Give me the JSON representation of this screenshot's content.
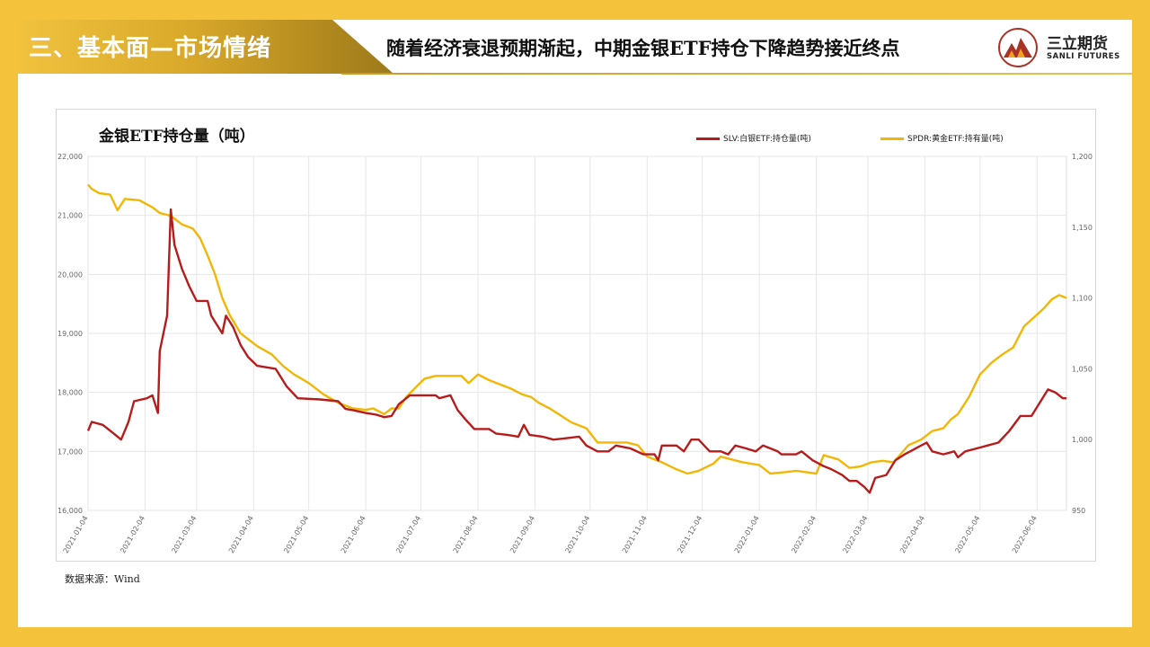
{
  "header": {
    "section_title": "三、基本面—市场情绪",
    "headline": "随着经济衰退预期渐起，中期金银ETF持仓下降趋势接近终点"
  },
  "logo": {
    "name_cn": "三立期货",
    "name_en": "SANLI FUTURES",
    "icon": "mountain-logo-icon"
  },
  "source": "数据来源：Wind",
  "colors": {
    "slv": "#b71c1c",
    "spdr": "#f2b705",
    "accent": "#f5c33b"
  },
  "chart_data": {
    "type": "line",
    "title": "金银ETF持仓量（吨）",
    "legend_position": "top-right",
    "grid": true,
    "x_ticks": [
      "2021-01-04",
      "2021-02-04",
      "2021-03-04",
      "2021-04-04",
      "2021-05-04",
      "2021-06-04",
      "2021-07-04",
      "2021-08-04",
      "2021-09-04",
      "2021-10-04",
      "2021-11-04",
      "2021-12-04",
      "2022-01-04",
      "2022-02-04",
      "2022-03-04",
      "2022-04-04",
      "2022-05-04",
      "2022-06-04"
    ],
    "x_range": [
      "2021-01-04",
      "2022-06-20"
    ],
    "y_left": {
      "range": [
        16000,
        22000
      ],
      "ticks": [
        "16,000",
        "17,000",
        "18,000",
        "19,000",
        "20,000",
        "21,000",
        "22,000"
      ]
    },
    "y_right": {
      "range": [
        950,
        1200
      ],
      "ticks": [
        "950",
        "1,000",
        "1,050",
        "1,100",
        "1,150",
        "1,200"
      ]
    },
    "series": [
      {
        "name": "SLV:白银ETF:持仓量(吨)",
        "axis": "left",
        "points": [
          [
            "2021-01-04",
            17350
          ],
          [
            "2021-01-06",
            17500
          ],
          [
            "2021-01-12",
            17450
          ],
          [
            "2021-01-18",
            17300
          ],
          [
            "2021-01-22",
            17200
          ],
          [
            "2021-01-26",
            17500
          ],
          [
            "2021-01-29",
            17850
          ],
          [
            "2021-02-05",
            17900
          ],
          [
            "2021-02-08",
            17950
          ],
          [
            "2021-02-11",
            17650
          ],
          [
            "2021-02-12",
            18700
          ],
          [
            "2021-02-16",
            19300
          ],
          [
            "2021-02-18",
            21100
          ],
          [
            "2021-02-20",
            20500
          ],
          [
            "2021-02-24",
            20100
          ],
          [
            "2021-02-28",
            19800
          ],
          [
            "2021-03-04",
            19550
          ],
          [
            "2021-03-10",
            19550
          ],
          [
            "2021-03-12",
            19300
          ],
          [
            "2021-03-18",
            19000
          ],
          [
            "2021-03-20",
            19300
          ],
          [
            "2021-03-24",
            19100
          ],
          [
            "2021-03-28",
            18800
          ],
          [
            "2021-04-01",
            18600
          ],
          [
            "2021-04-06",
            18450
          ],
          [
            "2021-04-16",
            18400
          ],
          [
            "2021-04-22",
            18100
          ],
          [
            "2021-04-28",
            17900
          ],
          [
            "2021-05-10",
            17880
          ],
          [
            "2021-05-20",
            17850
          ],
          [
            "2021-05-24",
            17720
          ],
          [
            "2021-05-28",
            17700
          ],
          [
            "2021-06-04",
            17650
          ],
          [
            "2021-06-10",
            17620
          ],
          [
            "2021-06-14",
            17580
          ],
          [
            "2021-06-18",
            17600
          ],
          [
            "2021-06-22",
            17800
          ],
          [
            "2021-06-28",
            17950
          ],
          [
            "2021-07-06",
            17950
          ],
          [
            "2021-07-12",
            17950
          ],
          [
            "2021-07-14",
            17900
          ],
          [
            "2021-07-20",
            17950
          ],
          [
            "2021-07-24",
            17700
          ],
          [
            "2021-07-28",
            17550
          ],
          [
            "2021-08-02",
            17380
          ],
          [
            "2021-08-10",
            17380
          ],
          [
            "2021-08-14",
            17300
          ],
          [
            "2021-08-20",
            17280
          ],
          [
            "2021-08-26",
            17250
          ],
          [
            "2021-08-29",
            17450
          ],
          [
            "2021-09-01",
            17280
          ],
          [
            "2021-09-08",
            17250
          ],
          [
            "2021-09-14",
            17200
          ],
          [
            "2021-09-20",
            17220
          ],
          [
            "2021-09-28",
            17250
          ],
          [
            "2021-10-02",
            17100
          ],
          [
            "2021-10-08",
            17000
          ],
          [
            "2021-10-14",
            17000
          ],
          [
            "2021-10-18",
            17100
          ],
          [
            "2021-10-26",
            17050
          ],
          [
            "2021-11-02",
            16950
          ],
          [
            "2021-11-08",
            16950
          ],
          [
            "2021-11-10",
            16850
          ],
          [
            "2021-11-12",
            17100
          ],
          [
            "2021-11-20",
            17100
          ],
          [
            "2021-11-24",
            17000
          ],
          [
            "2021-11-28",
            17200
          ],
          [
            "2021-12-02",
            17200
          ],
          [
            "2021-12-08",
            17000
          ],
          [
            "2021-12-14",
            17000
          ],
          [
            "2021-12-18",
            16950
          ],
          [
            "2021-12-22",
            17100
          ],
          [
            "2021-12-28",
            17050
          ],
          [
            "2022-01-02",
            17000
          ],
          [
            "2022-01-06",
            17100
          ],
          [
            "2022-01-14",
            17000
          ],
          [
            "2022-01-16",
            16950
          ],
          [
            "2022-01-24",
            16950
          ],
          [
            "2022-01-27",
            17000
          ],
          [
            "2022-02-02",
            16850
          ],
          [
            "2022-02-08",
            16750
          ],
          [
            "2022-02-12",
            16700
          ],
          [
            "2022-02-18",
            16600
          ],
          [
            "2022-02-22",
            16500
          ],
          [
            "2022-02-26",
            16500
          ],
          [
            "2022-03-02",
            16400
          ],
          [
            "2022-03-05",
            16300
          ],
          [
            "2022-03-08",
            16550
          ],
          [
            "2022-03-14",
            16600
          ],
          [
            "2022-03-19",
            16850
          ],
          [
            "2022-03-24",
            16950
          ],
          [
            "2022-03-30",
            17050
          ],
          [
            "2022-04-05",
            17150
          ],
          [
            "2022-04-08",
            17000
          ],
          [
            "2022-04-14",
            16950
          ],
          [
            "2022-04-20",
            17000
          ],
          [
            "2022-04-22",
            16900
          ],
          [
            "2022-04-26",
            17000
          ],
          [
            "2022-05-02",
            17050
          ],
          [
            "2022-05-08",
            17100
          ],
          [
            "2022-05-14",
            17150
          ],
          [
            "2022-05-20",
            17350
          ],
          [
            "2022-05-26",
            17600
          ],
          [
            "2022-06-01",
            17600
          ],
          [
            "2022-06-06",
            17850
          ],
          [
            "2022-06-10",
            18050
          ],
          [
            "2022-06-14",
            18000
          ],
          [
            "2022-06-18",
            17900
          ],
          [
            "2022-06-20",
            17900
          ]
        ]
      },
      {
        "name": "SPDR:黄金ETF:持有量(吨)",
        "axis": "right",
        "points": [
          [
            "2021-01-04",
            1180
          ],
          [
            "2021-01-06",
            1177
          ],
          [
            "2021-01-10",
            1174
          ],
          [
            "2021-01-16",
            1173
          ],
          [
            "2021-01-20",
            1162
          ],
          [
            "2021-01-24",
            1170
          ],
          [
            "2021-02-01",
            1169
          ],
          [
            "2021-02-08",
            1164
          ],
          [
            "2021-02-12",
            1160
          ],
          [
            "2021-02-18",
            1158
          ],
          [
            "2021-02-24",
            1152
          ],
          [
            "2021-03-02",
            1149
          ],
          [
            "2021-03-06",
            1142
          ],
          [
            "2021-03-10",
            1130
          ],
          [
            "2021-03-14",
            1117
          ],
          [
            "2021-03-18",
            1100
          ],
          [
            "2021-03-22",
            1088
          ],
          [
            "2021-03-28",
            1075
          ],
          [
            "2021-04-02",
            1070
          ],
          [
            "2021-04-06",
            1066
          ],
          [
            "2021-04-14",
            1060
          ],
          [
            "2021-04-20",
            1052
          ],
          [
            "2021-04-26",
            1046
          ],
          [
            "2021-05-04",
            1040
          ],
          [
            "2021-05-12",
            1032
          ],
          [
            "2021-05-20",
            1026
          ],
          [
            "2021-05-28",
            1022
          ],
          [
            "2021-06-04",
            1021
          ],
          [
            "2021-06-08",
            1022
          ],
          [
            "2021-06-14",
            1018
          ],
          [
            "2021-06-18",
            1022
          ],
          [
            "2021-06-22",
            1022
          ],
          [
            "2021-06-26",
            1030
          ],
          [
            "2021-07-02",
            1038
          ],
          [
            "2021-07-06",
            1043
          ],
          [
            "2021-07-12",
            1045
          ],
          [
            "2021-07-20",
            1045
          ],
          [
            "2021-07-26",
            1045
          ],
          [
            "2021-07-30",
            1040
          ],
          [
            "2021-08-04",
            1046
          ],
          [
            "2021-08-10",
            1042
          ],
          [
            "2021-08-16",
            1039
          ],
          [
            "2021-08-22",
            1036
          ],
          [
            "2021-08-28",
            1032
          ],
          [
            "2021-09-02",
            1030
          ],
          [
            "2021-09-06",
            1026
          ],
          [
            "2021-09-12",
            1022
          ],
          [
            "2021-09-18",
            1017
          ],
          [
            "2021-09-24",
            1012
          ],
          [
            "2021-10-02",
            1008
          ],
          [
            "2021-10-08",
            998
          ],
          [
            "2021-10-16",
            998
          ],
          [
            "2021-10-24",
            998
          ],
          [
            "2021-10-30",
            996
          ],
          [
            "2021-11-04",
            988
          ],
          [
            "2021-11-12",
            984
          ],
          [
            "2021-11-20",
            979
          ],
          [
            "2021-11-26",
            976
          ],
          [
            "2021-12-02",
            978
          ],
          [
            "2021-12-10",
            983
          ],
          [
            "2021-12-14",
            988
          ],
          [
            "2021-12-20",
            986
          ],
          [
            "2021-12-26",
            984
          ],
          [
            "2022-01-04",
            982
          ],
          [
            "2022-01-10",
            976
          ],
          [
            "2022-01-18",
            977
          ],
          [
            "2022-01-24",
            978
          ],
          [
            "2022-02-04",
            976
          ],
          [
            "2022-02-08",
            989
          ],
          [
            "2022-02-16",
            986
          ],
          [
            "2022-02-22",
            980
          ],
          [
            "2022-02-28",
            981
          ],
          [
            "2022-03-06",
            984
          ],
          [
            "2022-03-12",
            985
          ],
          [
            "2022-03-18",
            984
          ],
          [
            "2022-03-22",
            990
          ],
          [
            "2022-03-26",
            996
          ],
          [
            "2022-04-02",
            1000
          ],
          [
            "2022-04-08",
            1006
          ],
          [
            "2022-04-14",
            1008
          ],
          [
            "2022-04-18",
            1014
          ],
          [
            "2022-04-22",
            1018
          ],
          [
            "2022-04-28",
            1030
          ],
          [
            "2022-05-04",
            1046
          ],
          [
            "2022-05-10",
            1054
          ],
          [
            "2022-05-16",
            1060
          ],
          [
            "2022-05-22",
            1065
          ],
          [
            "2022-05-28",
            1080
          ],
          [
            "2022-06-02",
            1086
          ],
          [
            "2022-06-08",
            1093
          ],
          [
            "2022-06-12",
            1099
          ],
          [
            "2022-06-16",
            1102
          ],
          [
            "2022-06-20",
            1100
          ]
        ]
      }
    ]
  }
}
